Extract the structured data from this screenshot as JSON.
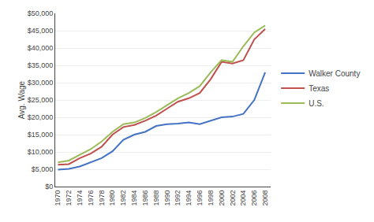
{
  "chart_data": {
    "type": "line",
    "x": [
      1970,
      1972,
      1974,
      1976,
      1978,
      1980,
      1982,
      1984,
      1986,
      1988,
      1990,
      1992,
      1994,
      1996,
      1998,
      2000,
      2002,
      2004,
      2006,
      2008
    ],
    "series": [
      {
        "name": "Walker County",
        "color": "#4472C4",
        "values": [
          4900,
          5100,
          5800,
          7000,
          8200,
          10200,
          13500,
          15000,
          15800,
          17500,
          18000,
          18200,
          18500,
          18000,
          19000,
          20000,
          20200,
          21000,
          25000,
          33000
        ]
      },
      {
        "name": "Texas",
        "color": "#C0504D",
        "values": [
          6300,
          6500,
          8200,
          9500,
          11500,
          15000,
          17200,
          17800,
          19000,
          20500,
          22500,
          24500,
          25500,
          27000,
          31000,
          36000,
          35500,
          36500,
          42500,
          45500
        ]
      },
      {
        "name": "U.S.",
        "color": "#9BBB59",
        "values": [
          7000,
          7500,
          9200,
          10800,
          13000,
          15800,
          18000,
          18500,
          19800,
          21500,
          23500,
          25500,
          27000,
          29000,
          33000,
          36500,
          36000,
          40500,
          44500,
          46500
        ]
      }
    ],
    "ylabel": "Avg. Wage",
    "xlim": [
      1969.5,
      2009
    ],
    "xticks": [
      1970,
      1972,
      1974,
      1976,
      1978,
      1980,
      1982,
      1984,
      1986,
      1988,
      1990,
      1992,
      1994,
      1996,
      1998,
      2000,
      2002,
      2004,
      2006,
      2008
    ],
    "ylim": [
      0,
      50000
    ],
    "yticks": [
      {
        "value": 0,
        "label": "$0"
      },
      {
        "value": 5000,
        "label": "$5,000"
      },
      {
        "value": 10000,
        "label": "$10,000"
      },
      {
        "value": 15000,
        "label": "$15,000"
      },
      {
        "value": 20000,
        "label": "$20,000"
      },
      {
        "value": 25000,
        "label": "$25,000"
      },
      {
        "value": 30000,
        "label": "$30,000"
      },
      {
        "value": 35000,
        "label": "$35,000"
      },
      {
        "value": 40000,
        "label": "$40,000"
      },
      {
        "value": 45000,
        "label": "$45,000"
      },
      {
        "value": 50000,
        "label": "$50,000"
      }
    ],
    "grid": true,
    "legend": "right"
  }
}
